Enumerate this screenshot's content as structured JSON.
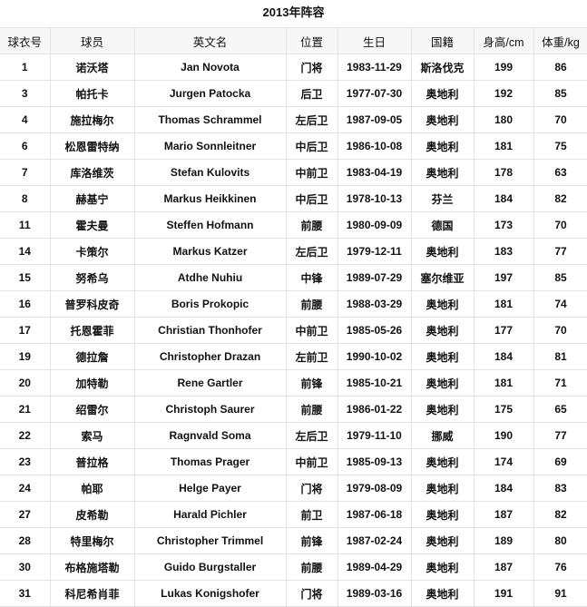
{
  "title": "2013年阵容",
  "columns": [
    "球衣号",
    "球员",
    "英文名",
    "位置",
    "生日",
    "国籍",
    "身高/cm",
    "体重/kg"
  ],
  "rows": [
    [
      "1",
      "诺沃塔",
      "Jan Novota",
      "门将",
      "1983-11-29",
      "斯洛伐克",
      "199",
      "86"
    ],
    [
      "3",
      "帕托卡",
      "Jurgen Patocka",
      "后卫",
      "1977-07-30",
      "奥地利",
      "192",
      "85"
    ],
    [
      "4",
      "施拉梅尔",
      "Thomas Schrammel",
      "左后卫",
      "1987-09-05",
      "奥地利",
      "180",
      "70"
    ],
    [
      "6",
      "松恩雷特纳",
      "Mario Sonnleitner",
      "中后卫",
      "1986-10-08",
      "奥地利",
      "181",
      "75"
    ],
    [
      "7",
      "库洛维茨",
      "Stefan Kulovits",
      "中前卫",
      "1983-04-19",
      "奥地利",
      "178",
      "63"
    ],
    [
      "8",
      "赫基宁",
      "Markus Heikkinen",
      "中后卫",
      "1978-10-13",
      "芬兰",
      "184",
      "82"
    ],
    [
      "11",
      "霍夫曼",
      "Steffen Hofmann",
      "前腰",
      "1980-09-09",
      "德国",
      "173",
      "70"
    ],
    [
      "14",
      "卡策尔",
      "Markus Katzer",
      "左后卫",
      "1979-12-11",
      "奥地利",
      "183",
      "77"
    ],
    [
      "15",
      "努希乌",
      "Atdhe Nuhiu",
      "中锋",
      "1989-07-29",
      "塞尔维亚",
      "197",
      "85"
    ],
    [
      "16",
      "普罗科皮奇",
      "Boris Prokopic",
      "前腰",
      "1988-03-29",
      "奥地利",
      "181",
      "74"
    ],
    [
      "17",
      "托恩霍菲",
      "Christian Thonhofer",
      "中前卫",
      "1985-05-26",
      "奥地利",
      "177",
      "70"
    ],
    [
      "19",
      "德拉詹",
      "Christopher Drazan",
      "左前卫",
      "1990-10-02",
      "奥地利",
      "184",
      "81"
    ],
    [
      "20",
      "加特勒",
      "Rene Gartler",
      "前锋",
      "1985-10-21",
      "奥地利",
      "181",
      "71"
    ],
    [
      "21",
      "绍雷尔",
      "Christoph Saurer",
      "前腰",
      "1986-01-22",
      "奥地利",
      "175",
      "65"
    ],
    [
      "22",
      "索马",
      "Ragnvald Soma",
      "左后卫",
      "1979-11-10",
      "挪威",
      "190",
      "77"
    ],
    [
      "23",
      "普拉格",
      "Thomas Prager",
      "中前卫",
      "1985-09-13",
      "奥地利",
      "174",
      "69"
    ],
    [
      "24",
      "帕耶",
      "Helge Payer",
      "门将",
      "1979-08-09",
      "奥地利",
      "184",
      "83"
    ],
    [
      "27",
      "皮希勒",
      "Harald Pichler",
      "前卫",
      "1987-06-18",
      "奥地利",
      "187",
      "82"
    ],
    [
      "28",
      "特里梅尔",
      "Christopher Trimmel",
      "前锋",
      "1987-02-24",
      "奥地利",
      "189",
      "80"
    ],
    [
      "30",
      "布格施塔勒",
      "Guido Burgstaller",
      "前腰",
      "1989-04-29",
      "奥地利",
      "187",
      "76"
    ],
    [
      "31",
      "科尼希肖菲",
      "Lukas Konigshofer",
      "门将",
      "1989-03-16",
      "奥地利",
      "191",
      "91"
    ]
  ]
}
